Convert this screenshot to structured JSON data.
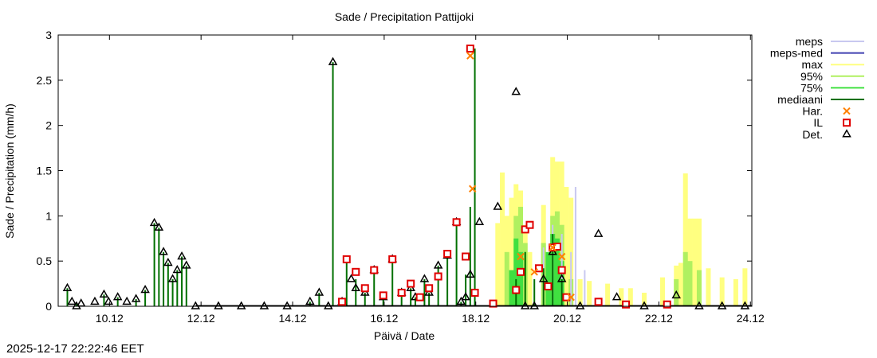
{
  "chart_data": {
    "type": "bar",
    "title": "Sade / Precipitation  Pattijoki",
    "xlabel": "Päivä / Date",
    "ylabel": "Sade / Precipitation (mm/h)",
    "ylim": [
      0,
      3
    ],
    "yticks": [
      "0",
      "0.5",
      "1",
      "1.5",
      "2",
      "2.5",
      "3"
    ],
    "xlim_days": [
      9.0,
      24.15
    ],
    "xticks": [
      {
        "day": 10.12,
        "label": "10.12"
      },
      {
        "day": 12.12,
        "label": "12.12"
      },
      {
        "day": 14.12,
        "label": "14.12"
      },
      {
        "day": 16.12,
        "label": "16.12"
      },
      {
        "day": 18.12,
        "label": "18.12"
      },
      {
        "day": 20.12,
        "label": "20.12"
      },
      {
        "day": 22.12,
        "label": "22.12"
      },
      {
        "day": 24.12,
        "label": "24.12"
      }
    ],
    "legend_position": "outside-right",
    "legend": [
      {
        "label": "meps",
        "color": "#c8c8f0",
        "style": "line"
      },
      {
        "label": "meps-med",
        "color": "#4040b0",
        "style": "line"
      },
      {
        "label": "max",
        "color": "#ffff80",
        "style": "line"
      },
      {
        "label": "95%",
        "color": "#b0f060",
        "style": "line"
      },
      {
        "label": "75%",
        "color": "#40e040",
        "style": "line"
      },
      {
        "label": "mediaani",
        "color": "#007000",
        "style": "line"
      },
      {
        "label": "Har.",
        "color": "#ff8000",
        "style": "x"
      },
      {
        "label": "IL",
        "color": "#e00000",
        "style": "square"
      },
      {
        "label": "Det.",
        "color": "#000000",
        "style": "triangle"
      }
    ],
    "series": [
      {
        "name": "Det.",
        "x_day": [
          9.2,
          9.3,
          9.4,
          9.5,
          9.8,
          10.0,
          10.1,
          10.3,
          10.5,
          10.7,
          10.9,
          11.1,
          11.2,
          11.3,
          11.4,
          11.5,
          11.6,
          11.7,
          11.8,
          12.0,
          12.5,
          13.0,
          13.5,
          14.0,
          14.5,
          14.7,
          14.9,
          15.0,
          15.2,
          15.4,
          15.5,
          15.7,
          15.9,
          16.1,
          16.3,
          16.5,
          16.7,
          16.8,
          17.0,
          17.1,
          17.3,
          17.5,
          17.7,
          17.8,
          17.9,
          18.0,
          18.2,
          18.6,
          19.0,
          19.2,
          19.4,
          19.6,
          19.8,
          20.0,
          20.4,
          20.8,
          21.2,
          21.8,
          22.5,
          23.0,
          23.5,
          24.0
        ],
        "values": [
          0.2,
          0.05,
          0.0,
          0.03,
          0.05,
          0.13,
          0.05,
          0.1,
          0.05,
          0.08,
          0.18,
          0.92,
          0.87,
          0.6,
          0.48,
          0.3,
          0.4,
          0.55,
          0.45,
          0.0,
          0.0,
          0.0,
          0.0,
          0.0,
          0.05,
          0.15,
          0.0,
          2.7,
          0.05,
          0.3,
          0.2,
          0.15,
          0.4,
          0.1,
          0.52,
          0.15,
          0.2,
          0.1,
          0.3,
          0.15,
          0.45,
          0.56,
          0.93,
          0.05,
          0.1,
          0.35,
          0.93,
          1.1,
          2.37,
          0.0,
          0.0,
          0.3,
          0.6,
          0.3,
          0.0,
          0.8,
          0.1,
          0.0,
          0.12,
          0.0,
          0.0,
          0.0
        ]
      },
      {
        "name": "IL",
        "x_day": [
          15.2,
          15.3,
          15.5,
          15.7,
          15.9,
          16.1,
          16.3,
          16.5,
          16.7,
          16.9,
          17.1,
          17.3,
          17.5,
          17.7,
          17.9,
          18.0,
          18.1,
          18.5,
          19.0,
          19.1,
          19.2,
          19.3,
          19.5,
          19.7,
          19.8,
          19.9,
          20.0,
          20.1,
          20.8,
          21.4,
          22.3
        ],
        "values": [
          0.05,
          0.52,
          0.38,
          0.2,
          0.4,
          0.12,
          0.52,
          0.15,
          0.25,
          0.1,
          0.2,
          0.33,
          0.58,
          0.93,
          0.55,
          2.85,
          0.15,
          0.03,
          0.18,
          0.38,
          0.85,
          0.9,
          0.42,
          0.22,
          0.65,
          0.66,
          0.4,
          0.1,
          0.05,
          0.02,
          0.02
        ]
      },
      {
        "name": "Har.",
        "x_day": [
          18.0,
          18.05,
          19.1,
          19.4,
          19.8,
          20.0,
          20.2
        ],
        "values": [
          2.77,
          1.3,
          0.55,
          0.38,
          0.65,
          0.55,
          0.1
        ]
      },
      {
        "name": "max",
        "x_day": [
          18.6,
          18.7,
          18.8,
          18.9,
          19.0,
          19.1,
          19.2,
          19.3,
          19.6,
          19.8,
          19.9,
          20.0,
          20.1,
          20.2,
          20.4,
          20.6,
          21.0,
          21.3,
          21.5,
          21.8,
          22.2,
          22.5,
          22.6,
          22.7,
          22.8,
          22.9,
          23.0,
          23.2,
          23.5,
          23.8,
          24.0
        ],
        "values": [
          0.92,
          1.48,
          1.0,
          1.2,
          1.35,
          1.28,
          0.9,
          0.6,
          1.12,
          1.65,
          1.6,
          1.6,
          1.32,
          1.2,
          0.3,
          0.28,
          0.25,
          0.2,
          0.2,
          0.15,
          0.32,
          0.45,
          0.48,
          1.47,
          0.97,
          0.97,
          0.97,
          0.42,
          0.32,
          0.3,
          0.42
        ]
      },
      {
        "name": "95%",
        "x_day": [
          18.8,
          19.0,
          19.1,
          19.2,
          19.6,
          19.8,
          19.9,
          20.0,
          20.2,
          22.5,
          22.7,
          22.8,
          23.0
        ],
        "values": [
          0.6,
          1.0,
          1.1,
          0.7,
          0.7,
          1.0,
          1.05,
          0.9,
          0.3,
          0.3,
          0.6,
          0.5,
          0.4
        ]
      },
      {
        "name": "75%",
        "x_day": [
          18.9,
          19.0,
          19.1,
          19.7,
          19.8,
          19.9,
          20.0
        ],
        "values": [
          0.4,
          0.75,
          0.6,
          0.6,
          0.8,
          0.75,
          0.5
        ]
      },
      {
        "name": "meps",
        "x_day": [
          19.6,
          19.8,
          20.0,
          20.2,
          20.3,
          20.5
        ],
        "values": [
          0.65,
          0.9,
          0.8,
          0.6,
          1.32,
          0.4
        ]
      },
      {
        "name": "mediaani",
        "x_day": [
          9.2,
          9.4,
          10.0,
          10.3,
          10.7,
          10.9,
          11.1,
          11.2,
          11.3,
          11.4,
          11.5,
          11.6,
          11.7,
          11.8,
          14.5,
          14.7,
          15.0,
          15.3,
          15.5,
          15.7,
          15.9,
          16.1,
          16.3,
          16.5,
          16.7,
          16.8,
          17.0,
          17.1,
          17.3,
          17.5,
          17.7,
          17.8,
          17.9,
          18.0,
          18.1,
          19.0,
          19.2,
          19.4,
          19.6,
          19.8,
          20.0
        ],
        "values": [
          0.2,
          0.03,
          0.13,
          0.1,
          0.08,
          0.18,
          0.92,
          0.87,
          0.6,
          0.48,
          0.3,
          0.4,
          0.55,
          0.45,
          0.05,
          0.15,
          2.7,
          0.52,
          0.3,
          0.15,
          0.4,
          0.1,
          0.52,
          0.15,
          0.2,
          0.1,
          0.3,
          0.15,
          0.45,
          0.56,
          0.93,
          0.05,
          0.35,
          1.1,
          2.85,
          0.3,
          0.6,
          0.3,
          0.42,
          0.8,
          0.3
        ]
      }
    ]
  },
  "footer_timestamp": "2025-12-17 22:22:46 EET"
}
